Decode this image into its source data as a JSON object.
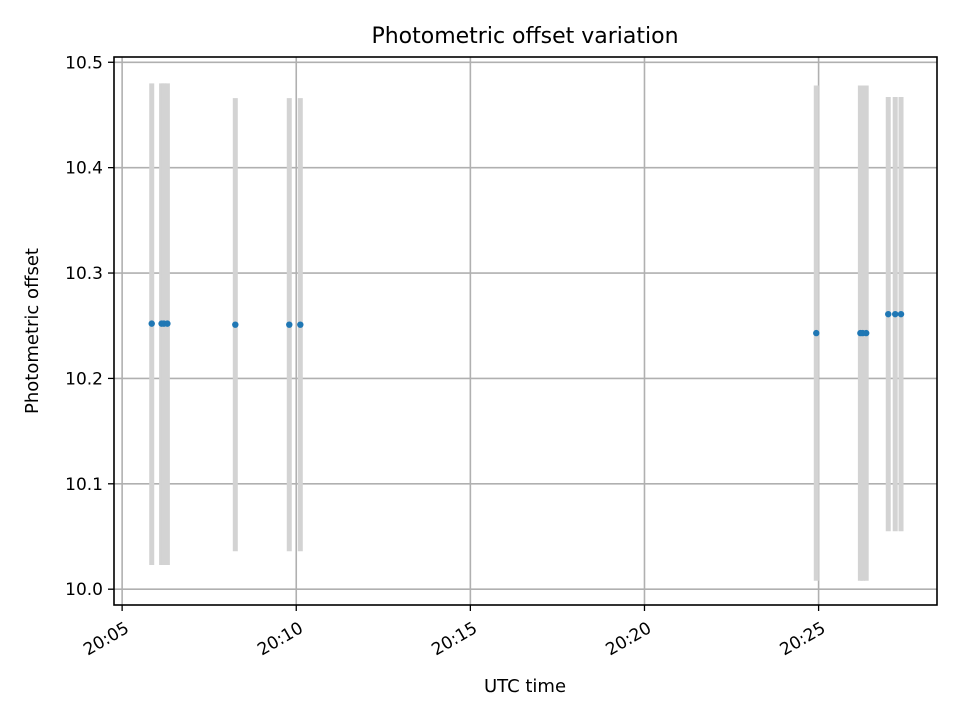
{
  "chart_data": {
    "type": "scatter",
    "title": "Photometric offset variation",
    "xlabel": "UTC time",
    "ylabel": "Photometric offset",
    "x_ticks": [
      "20:05",
      "20:10",
      "20:15",
      "20:20",
      "20:25"
    ],
    "y_ticks": [
      "10.0",
      "10.1",
      "10.2",
      "10.3",
      "10.4",
      "10.5"
    ],
    "xlim": [
      "20:04:46",
      "20:28:24"
    ],
    "ylim": [
      9.985,
      10.505
    ],
    "grid": true,
    "error_bar_color": "#d3d3d3",
    "marker_color": "#1f77b4",
    "points": [
      {
        "time": "20:05:51",
        "value": 10.252,
        "err_low": 10.023,
        "err_high": 10.48
      },
      {
        "time": "20:06:08",
        "value": 10.252,
        "err_low": 10.023,
        "err_high": 10.48
      },
      {
        "time": "20:06:12",
        "value": 10.252,
        "err_low": 10.023,
        "err_high": 10.48
      },
      {
        "time": "20:06:18",
        "value": 10.252,
        "err_low": 10.023,
        "err_high": 10.48
      },
      {
        "time": "20:08:15",
        "value": 10.251,
        "err_low": 10.036,
        "err_high": 10.466
      },
      {
        "time": "20:09:48",
        "value": 10.251,
        "err_low": 10.036,
        "err_high": 10.466
      },
      {
        "time": "20:10:07",
        "value": 10.251,
        "err_low": 10.036,
        "err_high": 10.466
      },
      {
        "time": "20:24:56",
        "value": 10.243,
        "err_low": 10.008,
        "err_high": 10.478
      },
      {
        "time": "20:26:12",
        "value": 10.243,
        "err_low": 10.008,
        "err_high": 10.478
      },
      {
        "time": "20:26:16",
        "value": 10.243,
        "err_low": 10.008,
        "err_high": 10.478
      },
      {
        "time": "20:26:22",
        "value": 10.243,
        "err_low": 10.008,
        "err_high": 10.478
      },
      {
        "time": "20:27:00",
        "value": 10.261,
        "err_low": 10.055,
        "err_high": 10.467
      },
      {
        "time": "20:27:12",
        "value": 10.261,
        "err_low": 10.055,
        "err_high": 10.467
      },
      {
        "time": "20:27:22",
        "value": 10.261,
        "err_low": 10.055,
        "err_high": 10.467
      }
    ]
  }
}
